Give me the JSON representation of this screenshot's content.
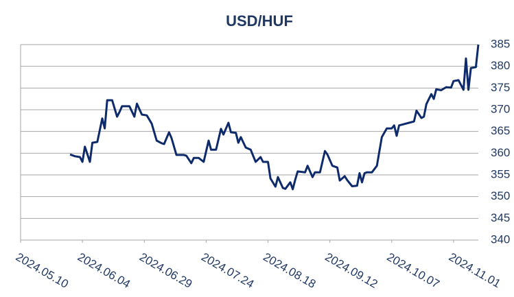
{
  "chart_data": {
    "type": "line",
    "title": "USD/HUF",
    "x": [
      "2024.05.30",
      "2024.06.01",
      "2024.06.03",
      "2024.06.04",
      "2024.06.05",
      "2024.06.07",
      "2024.06.08",
      "2024.06.10",
      "2024.06.12",
      "2024.06.13",
      "2024.06.14",
      "2024.06.16",
      "2024.06.18",
      "2024.06.19",
      "2024.06.20",
      "2024.06.23",
      "2024.06.25",
      "2024.06.26",
      "2024.06.28",
      "2024.06.30",
      "2024.07.02",
      "2024.07.04",
      "2024.07.06",
      "2024.07.07",
      "2024.07.09",
      "2024.07.10",
      "2024.07.12",
      "2024.07.15",
      "2024.07.16",
      "2024.07.18",
      "2024.07.19",
      "2024.07.21",
      "2024.07.23",
      "2024.07.25",
      "2024.07.26",
      "2024.07.28",
      "2024.07.30",
      "2024.07.31",
      "2024.08.02",
      "2024.08.03",
      "2024.08.05",
      "2024.08.06",
      "2024.08.07",
      "2024.08.09",
      "2024.08.11",
      "2024.08.13",
      "2024.08.15",
      "2024.08.16",
      "2024.08.18",
      "2024.08.19",
      "2024.08.21",
      "2024.08.22",
      "2024.08.24",
      "2024.08.25",
      "2024.08.27",
      "2024.08.28",
      "2024.08.29",
      "2024.08.30",
      "2024.09.02",
      "2024.09.03",
      "2024.09.05",
      "2024.09.06",
      "2024.09.08",
      "2024.09.10",
      "2024.09.11",
      "2024.09.13",
      "2024.09.15",
      "2024.09.16",
      "2024.09.18",
      "2024.09.19",
      "2024.09.21",
      "2024.09.23",
      "2024.09.24",
      "2024.09.25",
      "2024.09.26",
      "2024.09.27",
      "2024.09.29",
      "2024.10.01",
      "2024.10.02",
      "2024.10.03",
      "2024.10.05",
      "2024.10.07",
      "2024.10.08",
      "2024.10.09",
      "2024.10.10",
      "2024.10.12",
      "2024.10.14",
      "2024.10.16",
      "2024.10.17",
      "2024.10.19",
      "2024.10.20",
      "2024.10.21",
      "2024.10.23",
      "2024.10.24",
      "2024.10.25",
      "2024.10.27",
      "2024.10.29",
      "2024.10.31",
      "2024.11.01",
      "2024.11.03",
      "2024.11.04",
      "2024.11.05",
      "2024.11.06",
      "2024.11.07",
      "2024.11.08",
      "2024.11.10",
      "2024.11.11"
    ],
    "series": [
      {
        "name": "USD/HUF",
        "color": "#0d2a6b",
        "values": [
          359.7,
          359.3,
          359.1,
          358,
          361.5,
          358,
          362.4,
          362.6,
          368,
          365.7,
          372.2,
          372.2,
          368.4,
          369.5,
          370.8,
          370.8,
          368.4,
          371.4,
          368.9,
          368.7,
          366.8,
          362.9,
          362.3,
          362.1,
          364.8,
          363.5,
          359.6,
          359.6,
          359.4,
          357.7,
          358.9,
          358.9,
          358,
          362.9,
          360.8,
          360.8,
          365.6,
          364.3,
          367,
          364.8,
          364.7,
          362.4,
          363.7,
          361.3,
          360.8,
          358,
          359.1,
          358,
          358,
          354.2,
          352.3,
          354.5,
          352,
          351.8,
          353.3,
          351.7,
          353.9,
          355.8,
          355.6,
          357.1,
          354.5,
          355.6,
          355.6,
          360.5,
          359.7,
          357.1,
          356.7,
          353.7,
          354.7,
          353.8,
          352.4,
          352.5,
          355.4,
          353.3,
          355.4,
          355.6,
          355.6,
          357.1,
          360.4,
          363.7,
          365.7,
          365.7,
          366.4,
          364,
          366.4,
          366.7,
          367,
          367.3,
          369.8,
          368.1,
          368.4,
          371.3,
          373.6,
          372.5,
          374.7,
          374.5,
          375.2,
          375.1,
          376.6,
          376.8,
          375.7,
          374.6,
          381.8,
          374.6,
          379.6,
          379.8,
          385
        ]
      }
    ],
    "xlim": [
      "2024.05.10",
      "2024.11.11"
    ],
    "xticks": [
      "2024.05.10",
      "2024.06.04",
      "2024.06.29",
      "2024.07.24",
      "2024.08.18",
      "2024.09.12",
      "2024.10.07",
      "2024.11.01"
    ],
    "ylim": [
      340,
      385
    ],
    "yticks": [
      340,
      345,
      350,
      355,
      360,
      365,
      370,
      375,
      380,
      385
    ],
    "grid": true
  }
}
